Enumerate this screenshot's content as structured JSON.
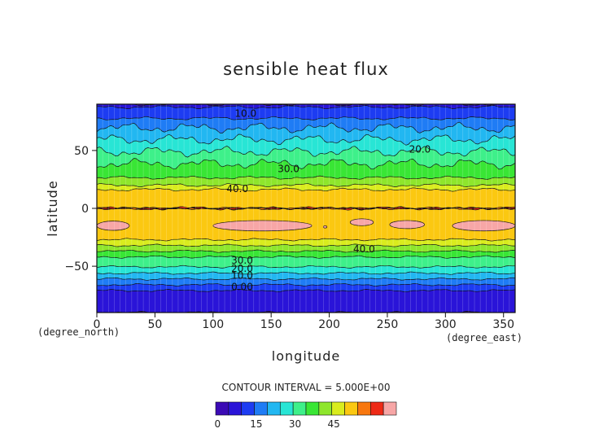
{
  "chart_data": {
    "type": "heatmap",
    "title": "sensible heat flux",
    "xlabel": "longitude",
    "ylabel": "latitude",
    "x_units": "(degree_east)",
    "y_units": "(degree_north)",
    "xlim": [
      0,
      360
    ],
    "ylim": [
      -90,
      90
    ],
    "x_ticks": [
      "0",
      "50",
      "100",
      "150",
      "200",
      "250",
      "300",
      "350"
    ],
    "y_ticks": [
      "50",
      "0",
      "−50"
    ],
    "contour_interval_text": "CONTOUR INTERVAL = 5.000E+00",
    "contour_interval": 5,
    "levels": [
      0,
      5,
      10,
      15,
      20,
      25,
      30,
      35,
      40,
      45,
      50,
      55
    ],
    "colors": [
      "#3b0ab5",
      "#2a14d8",
      "#1d3cf2",
      "#1f7cf5",
      "#22b7f1",
      "#28e5d5",
      "#3ef08a",
      "#39e635",
      "#8ee62c",
      "#d9ec1e",
      "#fbc811",
      "#f8770e",
      "#ee2a16",
      "#f7a6a6"
    ],
    "zonal_profile": {
      "lat": [
        -90,
        -72,
        -67,
        -62,
        -57,
        -52,
        -47,
        -42,
        -38,
        -34,
        -30,
        -26,
        -15,
        0,
        15,
        18,
        22,
        28,
        36,
        43,
        47,
        55,
        68,
        74,
        85,
        90
      ],
      "flux": [
        2,
        4,
        9,
        14,
        19,
        24,
        27,
        30,
        34,
        38,
        42,
        46,
        48,
        49,
        47,
        42,
        38,
        34,
        31,
        28,
        26,
        22,
        16,
        12,
        6,
        4
      ]
    },
    "contour_labels": [
      {
        "text": "10.0",
        "lon": 128,
        "lat": 82
      },
      {
        "text": "20.0",
        "lon": 278,
        "lat": 51
      },
      {
        "text": "30.0",
        "lon": 165,
        "lat": 34
      },
      {
        "text": "40.0",
        "lon": 121,
        "lat": 17
      },
      {
        "text": "40.0",
        "lon": 230,
        "lat": -35
      },
      {
        "text": "30.0",
        "lon": 125,
        "lat": -45
      },
      {
        "text": "20.0",
        "lon": 125,
        "lat": -52
      },
      {
        "text": "10.0",
        "lon": 125,
        "lat": -58
      },
      {
        "text": "0.00",
        "lon": 125,
        "lat": -68
      }
    ],
    "colorbar_ticks": [
      "0",
      "15",
      "30",
      "45"
    ],
    "colorbar_tick_values": [
      0,
      15,
      30,
      45
    ],
    "grid": true
  }
}
